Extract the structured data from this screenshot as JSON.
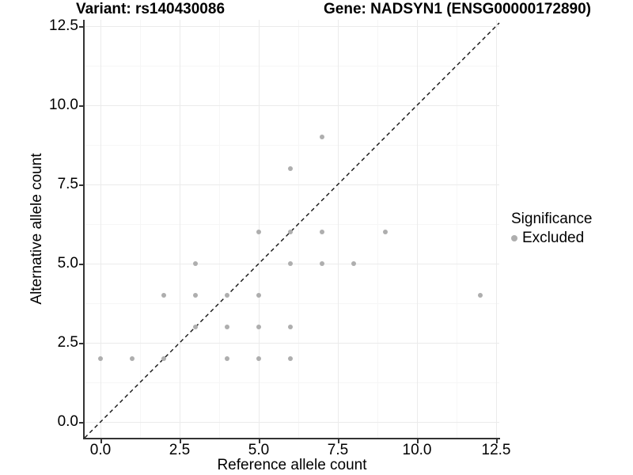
{
  "titles": {
    "variant": "Variant: rs140430086",
    "gene": "Gene: NADSYN1 (ENSG00000172890)"
  },
  "axes": {
    "x": {
      "label": "Reference allele count",
      "tick_labels": [
        "0.0",
        "2.5",
        "5.0",
        "7.5",
        "10.0",
        "12.5"
      ],
      "tick_values": [
        0,
        2.5,
        5,
        7.5,
        10,
        12.5
      ]
    },
    "y": {
      "label": "Alternative allele count",
      "tick_labels": [
        "0.0",
        "2.5",
        "5.0",
        "7.5",
        "10.0",
        "12.5"
      ],
      "tick_values": [
        0,
        2.5,
        5,
        7.5,
        10,
        12.5
      ]
    }
  },
  "legend": {
    "title": "Significance",
    "items": [
      {
        "label": "Excluded",
        "color": "#aeaeae"
      }
    ]
  },
  "colors": {
    "point": "#aeaeae",
    "axis_line": "#333333",
    "major_grid": "#ebebeb",
    "minor_grid": "#f6f6f6",
    "diagonal_line": "#111111"
  },
  "chart_data": {
    "type": "scatter",
    "title": "Variant: rs140430086   Gene: NADSYN1 (ENSG00000172890)",
    "xlabel": "Reference allele count",
    "ylabel": "Alternative allele count",
    "xlim": [
      -0.5,
      12.6
    ],
    "ylim": [
      -0.5,
      12.7
    ],
    "grid": {
      "major": [
        0,
        2.5,
        5,
        7.5,
        10,
        12.5
      ],
      "minor": [
        1.25,
        3.75,
        6.25,
        8.75,
        11.25
      ],
      "on": true
    },
    "legend_position": "right",
    "series": [
      {
        "name": "Excluded",
        "color": "#aeaeae",
        "points": [
          [
            0,
            2
          ],
          [
            1,
            2
          ],
          [
            2,
            2
          ],
          [
            4,
            2
          ],
          [
            5,
            2
          ],
          [
            6,
            2
          ],
          [
            3,
            3
          ],
          [
            4,
            3
          ],
          [
            5,
            3
          ],
          [
            6,
            3
          ],
          [
            2,
            4
          ],
          [
            3,
            4
          ],
          [
            4,
            4
          ],
          [
            5,
            4
          ],
          [
            12,
            4
          ],
          [
            3,
            5
          ],
          [
            6,
            5
          ],
          [
            7,
            5
          ],
          [
            8,
            5
          ],
          [
            5,
            6
          ],
          [
            6,
            6
          ],
          [
            7,
            6
          ],
          [
            9,
            6
          ],
          [
            6,
            8
          ],
          [
            7,
            9
          ]
        ]
      }
    ],
    "reference_line": {
      "equation": "y = x",
      "style": "dashed",
      "color": "#111111"
    }
  }
}
